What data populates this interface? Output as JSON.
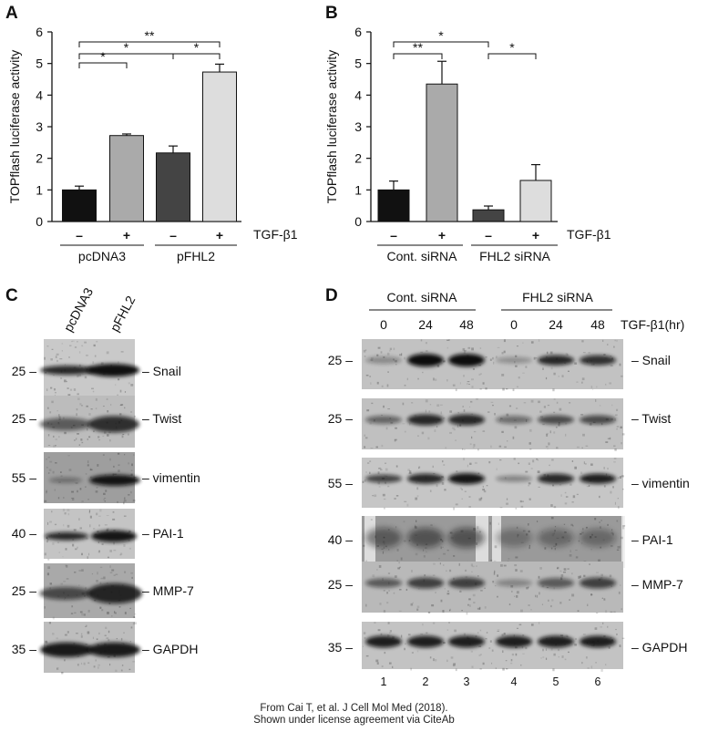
{
  "figure": {
    "panels": [
      "A",
      "B",
      "C",
      "D"
    ],
    "credit_line1": "From Cai T, et al. J Cell Mol Med (2018).",
    "credit_line2": "Shown under license agreement via CiteAb"
  },
  "chart_data": [
    {
      "panel": "A",
      "type": "bar",
      "ylabel": "TOPflash luciferase activity",
      "ylim": [
        0,
        6
      ],
      "yticks": [
        "0",
        "1",
        "2",
        "3",
        "4",
        "5",
        "6"
      ],
      "treatment_label": "TGF-β1",
      "treatment_marks": [
        "–",
        "+",
        "–",
        "+"
      ],
      "groups": [
        "pcDNA3",
        "pFHL2"
      ],
      "values": [
        1.0,
        2.72,
        2.17,
        4.73
      ],
      "errors": [
        0.12,
        0.05,
        0.22,
        0.25
      ],
      "colors": [
        "#111111",
        "#aaaaaa",
        "#444444",
        "#dddddd"
      ],
      "significance": [
        {
          "from": 0,
          "to": 1,
          "label": "*"
        },
        {
          "from": 0,
          "to": 2,
          "label": "*"
        },
        {
          "from": 2,
          "to": 3,
          "label": "*"
        },
        {
          "from": 0,
          "to": 3,
          "label": "**"
        }
      ]
    },
    {
      "panel": "B",
      "type": "bar",
      "ylabel": "TOPflash luciferase activity",
      "ylim": [
        0,
        6
      ],
      "yticks": [
        "0",
        "1",
        "2",
        "3",
        "4",
        "5",
        "6"
      ],
      "treatment_label": "TGF-β1",
      "treatment_marks": [
        "–",
        "+",
        "–",
        "+"
      ],
      "groups": [
        "Cont. siRNA",
        "FHL2 siRNA"
      ],
      "values": [
        1.0,
        4.35,
        0.37,
        1.3
      ],
      "errors": [
        0.28,
        0.72,
        0.12,
        0.5
      ],
      "colors": [
        "#111111",
        "#aaaaaa",
        "#444444",
        "#dddddd"
      ],
      "significance": [
        {
          "from": 0,
          "to": 1,
          "label": "**"
        },
        {
          "from": 0,
          "to": 2,
          "label": "*"
        },
        {
          "from": 2,
          "to": 3,
          "label": "*"
        }
      ]
    }
  ],
  "blotC": {
    "lanes": [
      "pcDNA3",
      "pFHL2"
    ],
    "rows": [
      {
        "mw": "25 –",
        "protein": "– Snail"
      },
      {
        "mw": "25 –",
        "protein": "– Twist"
      },
      {
        "mw": "55 –",
        "protein": "– vimentin"
      },
      {
        "mw": "40 –",
        "protein": "– PAI-1"
      },
      {
        "mw": "25 –",
        "protein": "– MMP-7"
      },
      {
        "mw": "35 –",
        "protein": "– GAPDH"
      }
    ]
  },
  "blotD": {
    "group1": "Cont. siRNA",
    "group2": "FHL2 siRNA",
    "timepoints": [
      "0",
      "24",
      "48",
      "0",
      "24",
      "48"
    ],
    "time_label": "TGF-β1(hr)",
    "lane_numbers": [
      "1",
      "2",
      "3",
      "4",
      "5",
      "6"
    ],
    "rows": [
      {
        "mw": "25 –",
        "protein": "– Snail"
      },
      {
        "mw": "25 –",
        "protein": "– Twist"
      },
      {
        "mw": "55 –",
        "protein": "– vimentin"
      },
      {
        "mw": "40 –",
        "protein": "– PAI-1"
      },
      {
        "mw": "25 –",
        "protein": "– MMP-7"
      },
      {
        "mw": "35 –",
        "protein": "– GAPDH"
      }
    ]
  }
}
